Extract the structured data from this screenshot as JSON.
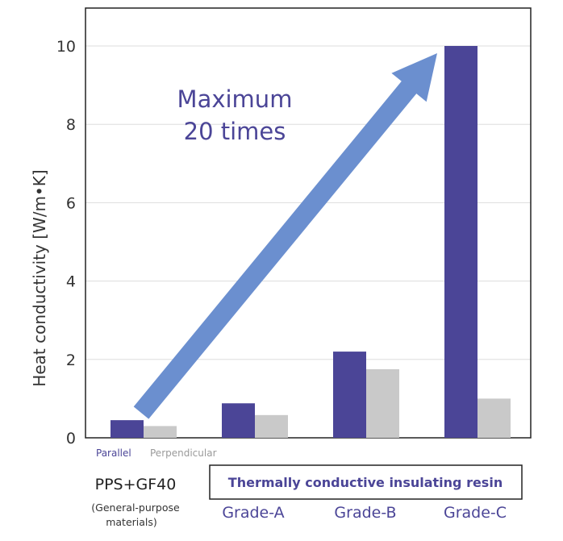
{
  "chart_data": {
    "type": "bar",
    "title": "",
    "ylabel": "Heat conductivity [W/m•K]",
    "ylim": [
      0,
      11
    ],
    "yticks": [
      0,
      2,
      4,
      6,
      8,
      10
    ],
    "grid": true,
    "categories": [
      "PPS+GF40",
      "Grade-A",
      "Grade-B",
      "Grade-C"
    ],
    "category_subtitle": [
      "(General-purpose",
      "materials)"
    ],
    "group_label": "Thermally conductive insulating resin",
    "series": [
      {
        "name": "Parallel",
        "color": "#4b4597",
        "values": [
          0.45,
          0.88,
          2.2,
          10.0
        ]
      },
      {
        "name": "Perpendicular",
        "color": "#c9c9c9",
        "values": [
          0.3,
          0.58,
          1.75,
          1.0
        ]
      }
    ],
    "annotation": {
      "lines": [
        "Maximum",
        "20 times"
      ],
      "arrow_color": "#6b8fcf"
    },
    "legend_position": "bottom-left"
  }
}
